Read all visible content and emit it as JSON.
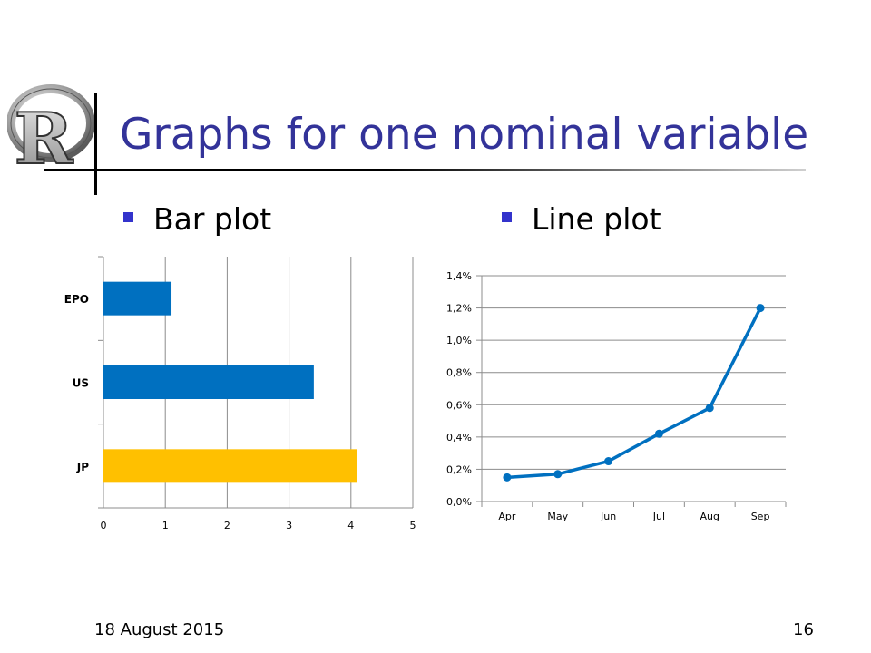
{
  "slide": {
    "title": "Graphs for one nominal variable",
    "bullets": [
      "Bar plot",
      "Line plot"
    ],
    "footer_date": "18 August 2015",
    "page_number": "16",
    "logo_letter": "R"
  },
  "colors": {
    "title": "#333399",
    "bullet": "#3333CC",
    "bar_blue": "#0070C0",
    "bar_gold": "#FFC000",
    "line": "#0070C0"
  },
  "chart_data": [
    {
      "type": "bar",
      "orientation": "horizontal",
      "categories": [
        "EPO",
        "US",
        "JP"
      ],
      "values": [
        1.1,
        3.4,
        4.1
      ],
      "bar_colors": [
        "#0070C0",
        "#0070C0",
        "#FFC000"
      ],
      "xlim": [
        0,
        5
      ],
      "x_ticks": [
        "0",
        "1",
        "2",
        "3",
        "4",
        "5"
      ],
      "grid": "vertical"
    },
    {
      "type": "line",
      "categories": [
        "Apr",
        "May",
        "Jun",
        "Jul",
        "Aug",
        "Sep"
      ],
      "values": [
        0.15,
        0.17,
        0.25,
        0.42,
        0.58,
        1.2
      ],
      "unit": "%",
      "ylim": [
        0,
        1.4
      ],
      "y_ticks": [
        "0,0%",
        "0,2%",
        "0,4%",
        "0,6%",
        "0,8%",
        "1,0%",
        "1,2%",
        "1,4%"
      ],
      "grid": "horizontal",
      "markers": true
    }
  ]
}
